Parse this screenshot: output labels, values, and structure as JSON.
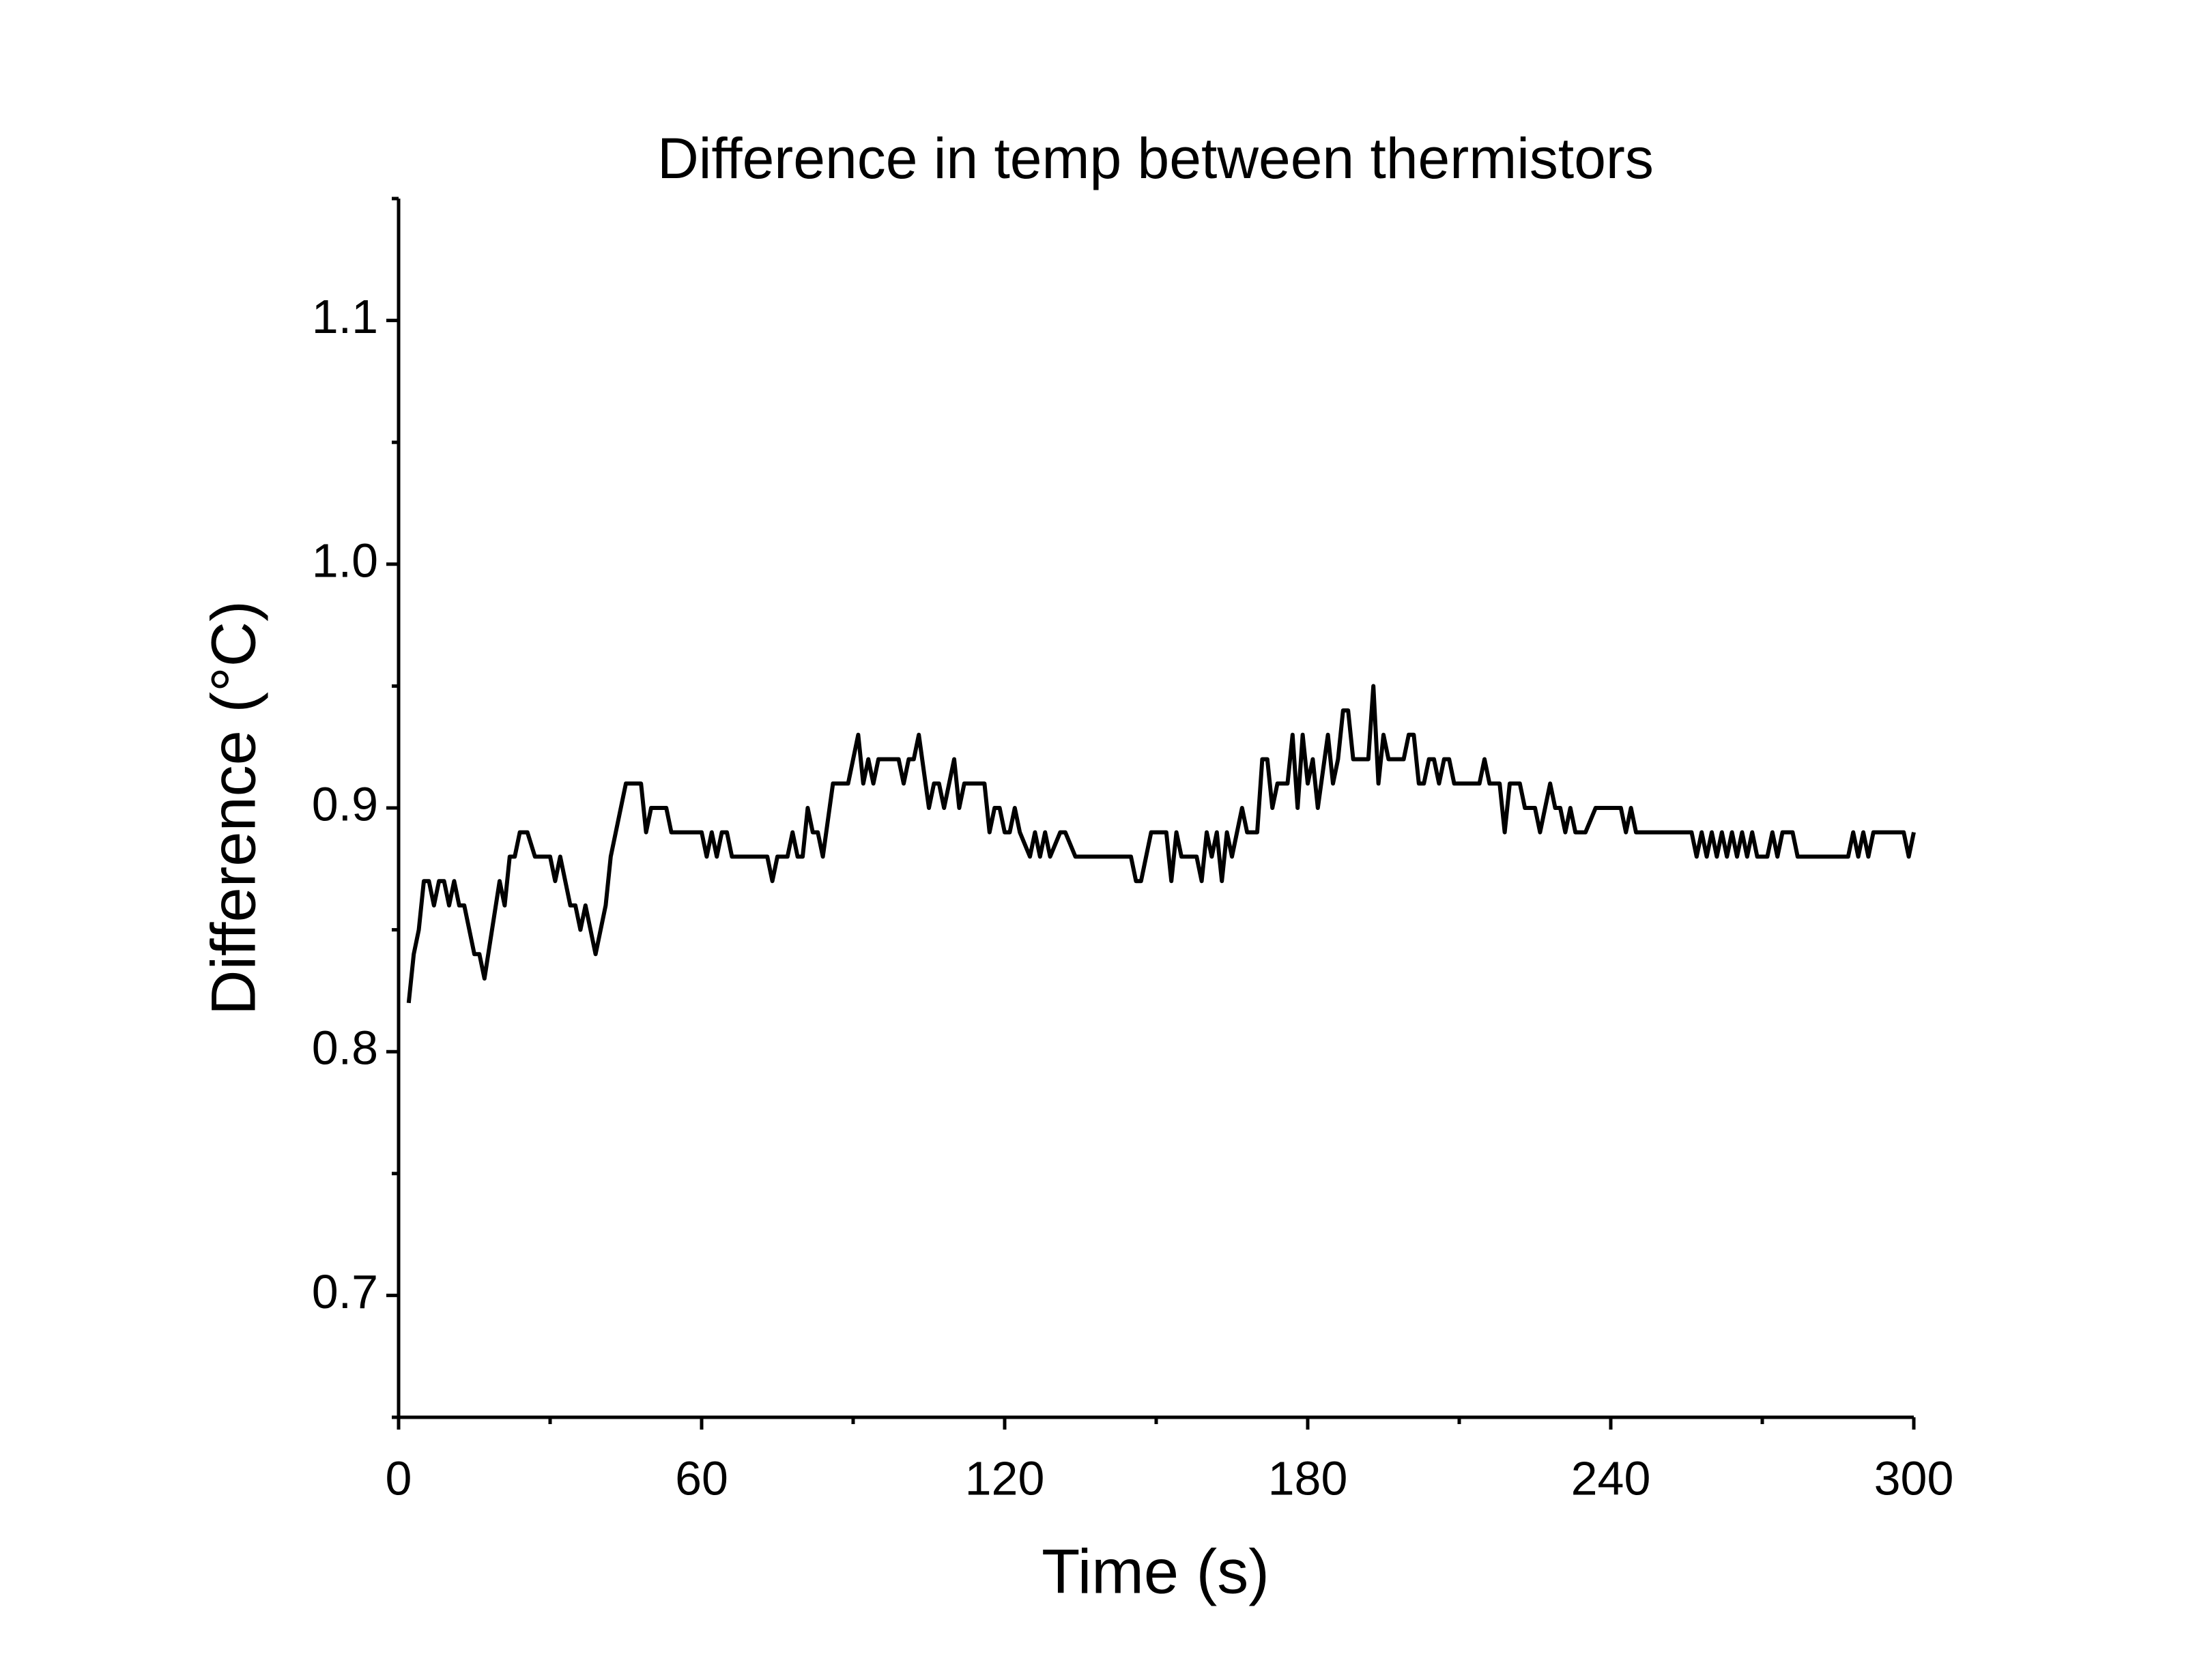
{
  "chart_data": {
    "type": "line",
    "title": "Difference in temp between thermistors",
    "x_label": "Time (s)",
    "y_label": "Difference (°C)",
    "xlim": [
      0,
      300
    ],
    "ylim": [
      0.65,
      1.15
    ],
    "xticks": [
      0,
      60,
      120,
      180,
      240,
      300
    ],
    "yticks": [
      0.7,
      0.8,
      0.9,
      {
        "value": 1,
        "label": "1.0"
      },
      1.1
    ],
    "xminorticks": [
      30,
      90,
      150,
      210,
      270
    ],
    "yminorticks": [
      0.65,
      0.75,
      0.85,
      0.95,
      1.05,
      1.15
    ],
    "grid": false,
    "series": [
      {
        "name": "Difference",
        "color": "#000000",
        "x": [
          2,
          3,
          4,
          5,
          6,
          7,
          8,
          9,
          10,
          11,
          12,
          13,
          15,
          16,
          17,
          18.5,
          20,
          21,
          22,
          23,
          24,
          25.5,
          27,
          30,
          31,
          32,
          34,
          35,
          36,
          37,
          39,
          41,
          42,
          45,
          48,
          49,
          50,
          53,
          54,
          60,
          61,
          62,
          63,
          64,
          65,
          66,
          73,
          74,
          75,
          77,
          78,
          79,
          80,
          81,
          82,
          83,
          84,
          86,
          89,
          91,
          92,
          93,
          94,
          95,
          99,
          100,
          101,
          102,
          103,
          105,
          106,
          107,
          108,
          110,
          111,
          112,
          116,
          117,
          118,
          119,
          120,
          121,
          122,
          123,
          125,
          126,
          127,
          128,
          129,
          131,
          132,
          134,
          145,
          146,
          147,
          149,
          152,
          153,
          154,
          155,
          158,
          159,
          160,
          161,
          162,
          163,
          164,
          165,
          167,
          168,
          170,
          171,
          172,
          173,
          174,
          176,
          177,
          178,
          179,
          180,
          181,
          182,
          184,
          185,
          186,
          187,
          188,
          189,
          192,
          193,
          194,
          195,
          196,
          199,
          200,
          201,
          202,
          203,
          204,
          205,
          206,
          207,
          208,
          209,
          214,
          215,
          216,
          218,
          219,
          220,
          222,
          223,
          225,
          226,
          227,
          228,
          229,
          230,
          231,
          232,
          233,
          234,
          235,
          237,
          242,
          243,
          244,
          245,
          256,
          257,
          258,
          259,
          260,
          261,
          262,
          263,
          264,
          265,
          266,
          267,
          268,
          269,
          271,
          272,
          273,
          274,
          276,
          277,
          287,
          288,
          289,
          290,
          291,
          292,
          298,
          299,
          300
        ],
        "values": [
          0.82,
          0.84,
          0.85,
          0.87,
          0.87,
          0.86,
          0.87,
          0.87,
          0.86,
          0.87,
          0.86,
          0.86,
          0.84,
          0.84,
          0.83,
          0.85,
          0.87,
          0.86,
          0.88,
          0.88,
          0.89,
          0.89,
          0.88,
          0.88,
          0.87,
          0.88,
          0.86,
          0.86,
          0.85,
          0.86,
          0.84,
          0.86,
          0.88,
          0.91,
          0.91,
          0.89,
          0.9,
          0.9,
          0.89,
          0.89,
          0.88,
          0.89,
          0.88,
          0.89,
          0.89,
          0.88,
          0.88,
          0.87,
          0.88,
          0.88,
          0.89,
          0.88,
          0.88,
          0.9,
          0.89,
          0.89,
          0.88,
          0.91,
          0.91,
          0.93,
          0.91,
          0.92,
          0.91,
          0.92,
          0.92,
          0.91,
          0.92,
          0.92,
          0.93,
          0.9,
          0.91,
          0.91,
          0.9,
          0.92,
          0.9,
          0.91,
          0.91,
          0.89,
          0.9,
          0.9,
          0.89,
          0.89,
          0.9,
          0.89,
          0.88,
          0.89,
          0.88,
          0.89,
          0.88,
          0.89,
          0.89,
          0.88,
          0.88,
          0.87,
          0.87,
          0.89,
          0.89,
          0.87,
          0.89,
          0.88,
          0.88,
          0.87,
          0.89,
          0.88,
          0.89,
          0.87,
          0.89,
          0.88,
          0.9,
          0.89,
          0.89,
          0.92,
          0.92,
          0.9,
          0.91,
          0.91,
          0.93,
          0.9,
          0.93,
          0.91,
          0.92,
          0.9,
          0.93,
          0.91,
          0.92,
          0.94,
          0.94,
          0.92,
          0.92,
          0.95,
          0.91,
          0.93,
          0.92,
          0.92,
          0.93,
          0.93,
          0.91,
          0.91,
          0.92,
          0.92,
          0.91,
          0.92,
          0.92,
          0.91,
          0.91,
          0.92,
          0.91,
          0.91,
          0.89,
          0.91,
          0.91,
          0.9,
          0.9,
          0.89,
          0.9,
          0.91,
          0.9,
          0.9,
          0.89,
          0.9,
          0.89,
          0.89,
          0.89,
          0.9,
          0.9,
          0.89,
          0.9,
          0.89,
          0.89,
          0.88,
          0.89,
          0.88,
          0.89,
          0.88,
          0.89,
          0.88,
          0.89,
          0.88,
          0.89,
          0.88,
          0.89,
          0.88,
          0.88,
          0.89,
          0.88,
          0.89,
          0.89,
          0.88,
          0.88,
          0.89,
          0.88,
          0.89,
          0.88,
          0.89,
          0.89,
          0.88,
          0.89
        ]
      }
    ]
  }
}
